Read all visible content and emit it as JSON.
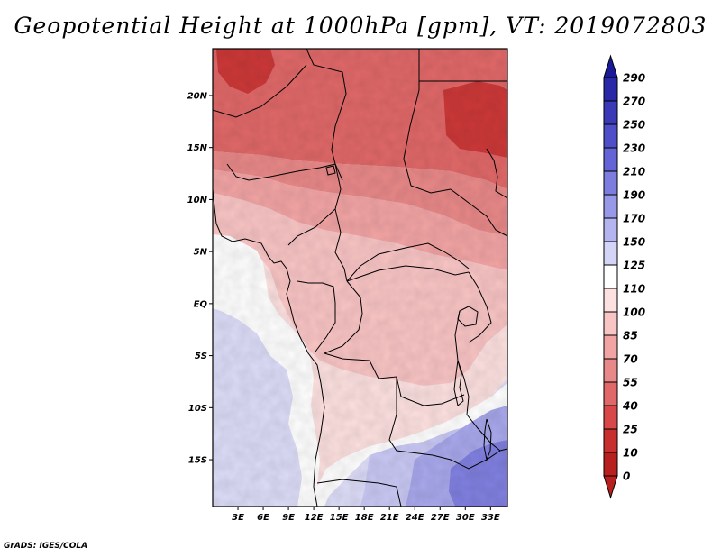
{
  "title": "Geopotential Height at 1000hPa [gpm], VT: 2019072803",
  "footer": "GrADS: IGES/COLA",
  "map": {
    "lon_range": [
      0,
      35
    ],
    "lat_range": [
      -19.5,
      24.5
    ],
    "lon_ticks": [
      {
        "lon": 3,
        "label": "3E"
      },
      {
        "lon": 6,
        "label": "6E"
      },
      {
        "lon": 9,
        "label": "9E"
      },
      {
        "lon": 12,
        "label": "12E"
      },
      {
        "lon": 15,
        "label": "15E"
      },
      {
        "lon": 18,
        "label": "18E"
      },
      {
        "lon": 21,
        "label": "21E"
      },
      {
        "lon": 24,
        "label": "24E"
      },
      {
        "lon": 27,
        "label": "27E"
      },
      {
        "lon": 30,
        "label": "30E"
      },
      {
        "lon": 33,
        "label": "33E"
      }
    ],
    "lat_ticks": [
      {
        "lat": 20,
        "label": "20N"
      },
      {
        "lat": 15,
        "label": "15N"
      },
      {
        "lat": 10,
        "label": "10N"
      },
      {
        "lat": 5,
        "label": "5N"
      },
      {
        "lat": 0,
        "label": "EQ"
      },
      {
        "lat": -5,
        "label": "5S"
      },
      {
        "lat": -10,
        "label": "10S"
      },
      {
        "lat": -15,
        "label": "15S"
      }
    ]
  },
  "colorbar": {
    "levels": [
      {
        "label": "290",
        "color": "#1a1a99"
      },
      {
        "label": "270",
        "color": "#2828a8"
      },
      {
        "label": "250",
        "color": "#3a3ab8"
      },
      {
        "label": "230",
        "color": "#4e4ec8"
      },
      {
        "label": "210",
        "color": "#6464d6"
      },
      {
        "label": "190",
        "color": "#7d7de0"
      },
      {
        "label": "170",
        "color": "#9898e8"
      },
      {
        "label": "150",
        "color": "#b4b4f0"
      },
      {
        "label": "125",
        "color": "#d4d4f6"
      },
      {
        "label": "110",
        "color": "#ffffff"
      },
      {
        "label": "100",
        "color": "#fde0e0"
      },
      {
        "label": "85",
        "color": "#f9c4c4"
      },
      {
        "label": "70",
        "color": "#f2a4a4"
      },
      {
        "label": "55",
        "color": "#e88888"
      },
      {
        "label": "40",
        "color": "#e06868"
      },
      {
        "label": "25",
        "color": "#d84848"
      },
      {
        "label": "10",
        "color": "#c83030"
      },
      {
        "label": "0",
        "color": "#b82020"
      }
    ]
  },
  "fill_colors": {
    "ocean": "#dcdcf8",
    "white": "#ffffff",
    "pale_pink": "#fde0e0",
    "light_pink": "#f9c4c4",
    "pink": "#f2a4a4",
    "salmon": "#e88888",
    "red": "#e06868",
    "dark_red": "#cc3838",
    "lavender": "#c8c8f4",
    "violet": "#a8a8ec",
    "blue_violet": "#8080e0"
  }
}
